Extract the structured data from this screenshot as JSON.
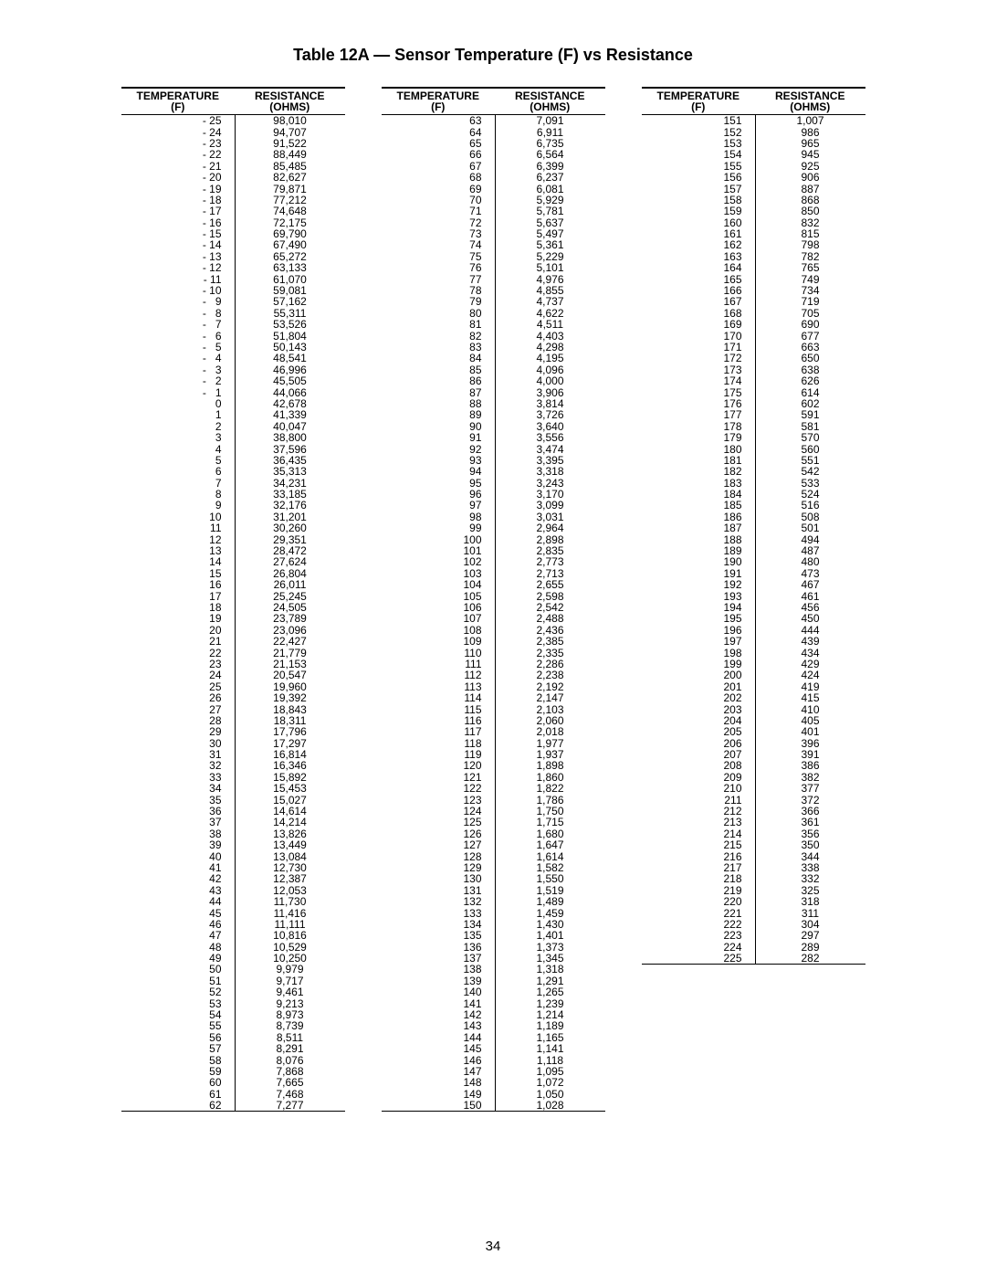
{
  "title": "Table 12A — Sensor Temperature (F) vs Resistance",
  "page_number": "34",
  "columns": {
    "temp_label_top": "TEMPERATURE",
    "temp_label_bot": "(F)",
    "res_label_top": "RESISTANCE",
    "res_label_bot": "(OHMS)"
  },
  "tables": [
    {
      "rows": [
        {
          "t": "- 25",
          "r": "98,010"
        },
        {
          "t": "- 24",
          "r": "94,707"
        },
        {
          "t": "- 23",
          "r": "91,522"
        },
        {
          "t": "- 22",
          "r": "88,449"
        },
        {
          "t": "- 21",
          "r": "85,485"
        },
        {
          "t": "- 20",
          "r": "82,627"
        },
        {
          "t": "- 19",
          "r": "79,871"
        },
        {
          "t": "- 18",
          "r": "77,212"
        },
        {
          "t": "- 17",
          "r": "74,648"
        },
        {
          "t": "- 16",
          "r": "72,175"
        },
        {
          "t": "- 15",
          "r": "69,790"
        },
        {
          "t": "- 14",
          "r": "67,490"
        },
        {
          "t": "- 13",
          "r": "65,272"
        },
        {
          "t": "- 12",
          "r": "63,133"
        },
        {
          "t": "- 11",
          "r": "61,070"
        },
        {
          "t": "- 10",
          "r": "59,081"
        },
        {
          "t": "-   9",
          "r": "57,162"
        },
        {
          "t": "-   8",
          "r": "55,311"
        },
        {
          "t": "-   7",
          "r": "53,526"
        },
        {
          "t": "-   6",
          "r": "51,804"
        },
        {
          "t": "-   5",
          "r": "50,143"
        },
        {
          "t": "-   4",
          "r": "48,541"
        },
        {
          "t": "-   3",
          "r": "46,996"
        },
        {
          "t": "-   2",
          "r": "45,505"
        },
        {
          "t": "-   1",
          "r": "44,066"
        },
        {
          "t": "0",
          "r": "42,678"
        },
        {
          "t": "1",
          "r": "41,339"
        },
        {
          "t": "2",
          "r": "40,047"
        },
        {
          "t": "3",
          "r": "38,800"
        },
        {
          "t": "4",
          "r": "37,596"
        },
        {
          "t": "5",
          "r": "36,435"
        },
        {
          "t": "6",
          "r": "35,313"
        },
        {
          "t": "7",
          "r": "34,231"
        },
        {
          "t": "8",
          "r": "33,185"
        },
        {
          "t": "9",
          "r": "32,176"
        },
        {
          "t": "10",
          "r": "31,201"
        },
        {
          "t": "11",
          "r": "30,260"
        },
        {
          "t": "12",
          "r": "29,351"
        },
        {
          "t": "13",
          "r": "28,472"
        },
        {
          "t": "14",
          "r": "27,624"
        },
        {
          "t": "15",
          "r": "26,804"
        },
        {
          "t": "16",
          "r": "26,011"
        },
        {
          "t": "17",
          "r": "25,245"
        },
        {
          "t": "18",
          "r": "24,505"
        },
        {
          "t": "19",
          "r": "23,789"
        },
        {
          "t": "20",
          "r": "23,096"
        },
        {
          "t": "21",
          "r": "22,427"
        },
        {
          "t": "22",
          "r": "21,779"
        },
        {
          "t": "23",
          "r": "21,153"
        },
        {
          "t": "24",
          "r": "20,547"
        },
        {
          "t": "25",
          "r": "19,960"
        },
        {
          "t": "26",
          "r": "19,392"
        },
        {
          "t": "27",
          "r": "18,843"
        },
        {
          "t": "28",
          "r": "18,311"
        },
        {
          "t": "29",
          "r": "17,796"
        },
        {
          "t": "30",
          "r": "17,297"
        },
        {
          "t": "31",
          "r": "16,814"
        },
        {
          "t": "32",
          "r": "16,346"
        },
        {
          "t": "33",
          "r": "15,892"
        },
        {
          "t": "34",
          "r": "15,453"
        },
        {
          "t": "35",
          "r": "15,027"
        },
        {
          "t": "36",
          "r": "14,614"
        },
        {
          "t": "37",
          "r": "14,214"
        },
        {
          "t": "38",
          "r": "13,826"
        },
        {
          "t": "39",
          "r": "13,449"
        },
        {
          "t": "40",
          "r": "13,084"
        },
        {
          "t": "41",
          "r": "12,730"
        },
        {
          "t": "42",
          "r": "12,387"
        },
        {
          "t": "43",
          "r": "12,053"
        },
        {
          "t": "44",
          "r": "11,730"
        },
        {
          "t": "45",
          "r": "11,416"
        },
        {
          "t": "46",
          "r": "11,111"
        },
        {
          "t": "47",
          "r": "10,816"
        },
        {
          "t": "48",
          "r": "10,529"
        },
        {
          "t": "49",
          "r": "10,250"
        },
        {
          "t": "50",
          "r": "9,979"
        },
        {
          "t": "51",
          "r": "9,717"
        },
        {
          "t": "52",
          "r": "9,461"
        },
        {
          "t": "53",
          "r": "9,213"
        },
        {
          "t": "54",
          "r": "8,973"
        },
        {
          "t": "55",
          "r": "8,739"
        },
        {
          "t": "56",
          "r": "8,511"
        },
        {
          "t": "57",
          "r": "8,291"
        },
        {
          "t": "58",
          "r": "8,076"
        },
        {
          "t": "59",
          "r": "7,868"
        },
        {
          "t": "60",
          "r": "7,665"
        },
        {
          "t": "61",
          "r": "7,468"
        },
        {
          "t": "62",
          "r": "7,277"
        }
      ]
    },
    {
      "rows": [
        {
          "t": "63",
          "r": "7,091"
        },
        {
          "t": "64",
          "r": "6,911"
        },
        {
          "t": "65",
          "r": "6,735"
        },
        {
          "t": "66",
          "r": "6,564"
        },
        {
          "t": "67",
          "r": "6,399"
        },
        {
          "t": "68",
          "r": "6,237"
        },
        {
          "t": "69",
          "r": "6,081"
        },
        {
          "t": "70",
          "r": "5,929"
        },
        {
          "t": "71",
          "r": "5,781"
        },
        {
          "t": "72",
          "r": "5,637"
        },
        {
          "t": "73",
          "r": "5,497"
        },
        {
          "t": "74",
          "r": "5,361"
        },
        {
          "t": "75",
          "r": "5,229"
        },
        {
          "t": "76",
          "r": "5,101"
        },
        {
          "t": "77",
          "r": "4,976"
        },
        {
          "t": "78",
          "r": "4,855"
        },
        {
          "t": "79",
          "r": "4,737"
        },
        {
          "t": "80",
          "r": "4,622"
        },
        {
          "t": "81",
          "r": "4,511"
        },
        {
          "t": "82",
          "r": "4,403"
        },
        {
          "t": "83",
          "r": "4,298"
        },
        {
          "t": "84",
          "r": "4,195"
        },
        {
          "t": "85",
          "r": "4,096"
        },
        {
          "t": "86",
          "r": "4,000"
        },
        {
          "t": "87",
          "r": "3,906"
        },
        {
          "t": "88",
          "r": "3,814"
        },
        {
          "t": "89",
          "r": "3,726"
        },
        {
          "t": "90",
          "r": "3,640"
        },
        {
          "t": "91",
          "r": "3,556"
        },
        {
          "t": "92",
          "r": "3,474"
        },
        {
          "t": "93",
          "r": "3,395"
        },
        {
          "t": "94",
          "r": "3,318"
        },
        {
          "t": "95",
          "r": "3,243"
        },
        {
          "t": "96",
          "r": "3,170"
        },
        {
          "t": "97",
          "r": "3,099"
        },
        {
          "t": "98",
          "r": "3,031"
        },
        {
          "t": "99",
          "r": "2,964"
        },
        {
          "t": "100",
          "r": "2,898"
        },
        {
          "t": "101",
          "r": "2,835"
        },
        {
          "t": "102",
          "r": "2,773"
        },
        {
          "t": "103",
          "r": "2,713"
        },
        {
          "t": "104",
          "r": "2,655"
        },
        {
          "t": "105",
          "r": "2,598"
        },
        {
          "t": "106",
          "r": "2,542"
        },
        {
          "t": "107",
          "r": "2,488"
        },
        {
          "t": "108",
          "r": "2,436"
        },
        {
          "t": "109",
          "r": "2,385"
        },
        {
          "t": "110",
          "r": "2,335"
        },
        {
          "t": "111",
          "r": "2,286"
        },
        {
          "t": "112",
          "r": "2,238"
        },
        {
          "t": "113",
          "r": "2,192"
        },
        {
          "t": "114",
          "r": "2,147"
        },
        {
          "t": "115",
          "r": "2,103"
        },
        {
          "t": "116",
          "r": "2,060"
        },
        {
          "t": "117",
          "r": "2,018"
        },
        {
          "t": "118",
          "r": "1,977"
        },
        {
          "t": "119",
          "r": "1,937"
        },
        {
          "t": "120",
          "r": "1,898"
        },
        {
          "t": "121",
          "r": "1,860"
        },
        {
          "t": "122",
          "r": "1,822"
        },
        {
          "t": "123",
          "r": "1,786"
        },
        {
          "t": "124",
          "r": "1,750"
        },
        {
          "t": "125",
          "r": "1,715"
        },
        {
          "t": "126",
          "r": "1,680"
        },
        {
          "t": "127",
          "r": "1,647"
        },
        {
          "t": "128",
          "r": "1,614"
        },
        {
          "t": "129",
          "r": "1,582"
        },
        {
          "t": "130",
          "r": "1,550"
        },
        {
          "t": "131",
          "r": "1,519"
        },
        {
          "t": "132",
          "r": "1,489"
        },
        {
          "t": "133",
          "r": "1,459"
        },
        {
          "t": "134",
          "r": "1,430"
        },
        {
          "t": "135",
          "r": "1,401"
        },
        {
          "t": "136",
          "r": "1,373"
        },
        {
          "t": "137",
          "r": "1,345"
        },
        {
          "t": "138",
          "r": "1,318"
        },
        {
          "t": "139",
          "r": "1,291"
        },
        {
          "t": "140",
          "r": "1,265"
        },
        {
          "t": "141",
          "r": "1,239"
        },
        {
          "t": "142",
          "r": "1,214"
        },
        {
          "t": "143",
          "r": "1,189"
        },
        {
          "t": "144",
          "r": "1,165"
        },
        {
          "t": "145",
          "r": "1,141"
        },
        {
          "t": "146",
          "r": "1,118"
        },
        {
          "t": "147",
          "r": "1,095"
        },
        {
          "t": "148",
          "r": "1,072"
        },
        {
          "t": "149",
          "r": "1,050"
        },
        {
          "t": "150",
          "r": "1,028"
        }
      ]
    },
    {
      "rows": [
        {
          "t": "151",
          "r": "1,007"
        },
        {
          "t": "152",
          "r": "986"
        },
        {
          "t": "153",
          "r": "965"
        },
        {
          "t": "154",
          "r": "945"
        },
        {
          "t": "155",
          "r": "925"
        },
        {
          "t": "156",
          "r": "906"
        },
        {
          "t": "157",
          "r": "887"
        },
        {
          "t": "158",
          "r": "868"
        },
        {
          "t": "159",
          "r": "850"
        },
        {
          "t": "160",
          "r": "832"
        },
        {
          "t": "161",
          "r": "815"
        },
        {
          "t": "162",
          "r": "798"
        },
        {
          "t": "163",
          "r": "782"
        },
        {
          "t": "164",
          "r": "765"
        },
        {
          "t": "165",
          "r": "749"
        },
        {
          "t": "166",
          "r": "734"
        },
        {
          "t": "167",
          "r": "719"
        },
        {
          "t": "168",
          "r": "705"
        },
        {
          "t": "169",
          "r": "690"
        },
        {
          "t": "170",
          "r": "677"
        },
        {
          "t": "171",
          "r": "663"
        },
        {
          "t": "172",
          "r": "650"
        },
        {
          "t": "173",
          "r": "638"
        },
        {
          "t": "174",
          "r": "626"
        },
        {
          "t": "175",
          "r": "614"
        },
        {
          "t": "176",
          "r": "602"
        },
        {
          "t": "177",
          "r": "591"
        },
        {
          "t": "178",
          "r": "581"
        },
        {
          "t": "179",
          "r": "570"
        },
        {
          "t": "180",
          "r": "560"
        },
        {
          "t": "181",
          "r": "551"
        },
        {
          "t": "182",
          "r": "542"
        },
        {
          "t": "183",
          "r": "533"
        },
        {
          "t": "184",
          "r": "524"
        },
        {
          "t": "185",
          "r": "516"
        },
        {
          "t": "186",
          "r": "508"
        },
        {
          "t": "187",
          "r": "501"
        },
        {
          "t": "188",
          "r": "494"
        },
        {
          "t": "189",
          "r": "487"
        },
        {
          "t": "190",
          "r": "480"
        },
        {
          "t": "191",
          "r": "473"
        },
        {
          "t": "192",
          "r": "467"
        },
        {
          "t": "193",
          "r": "461"
        },
        {
          "t": "194",
          "r": "456"
        },
        {
          "t": "195",
          "r": "450"
        },
        {
          "t": "196",
          "r": "444"
        },
        {
          "t": "197",
          "r": "439"
        },
        {
          "t": "198",
          "r": "434"
        },
        {
          "t": "199",
          "r": "429"
        },
        {
          "t": "200",
          "r": "424"
        },
        {
          "t": "201",
          "r": "419"
        },
        {
          "t": "202",
          "r": "415"
        },
        {
          "t": "203",
          "r": "410"
        },
        {
          "t": "204",
          "r": "405"
        },
        {
          "t": "205",
          "r": "401"
        },
        {
          "t": "206",
          "r": "396"
        },
        {
          "t": "207",
          "r": "391"
        },
        {
          "t": "208",
          "r": "386"
        },
        {
          "t": "209",
          "r": "382"
        },
        {
          "t": "210",
          "r": "377"
        },
        {
          "t": "211",
          "r": "372"
        },
        {
          "t": "212",
          "r": "366"
        },
        {
          "t": "213",
          "r": "361"
        },
        {
          "t": "214",
          "r": "356"
        },
        {
          "t": "215",
          "r": "350"
        },
        {
          "t": "216",
          "r": "344"
        },
        {
          "t": "217",
          "r": "338"
        },
        {
          "t": "218",
          "r": "332"
        },
        {
          "t": "219",
          "r": "325"
        },
        {
          "t": "220",
          "r": "318"
        },
        {
          "t": "221",
          "r": "311"
        },
        {
          "t": "222",
          "r": "304"
        },
        {
          "t": "223",
          "r": "297"
        },
        {
          "t": "224",
          "r": "289"
        },
        {
          "t": "225",
          "r": "282"
        }
      ]
    }
  ]
}
